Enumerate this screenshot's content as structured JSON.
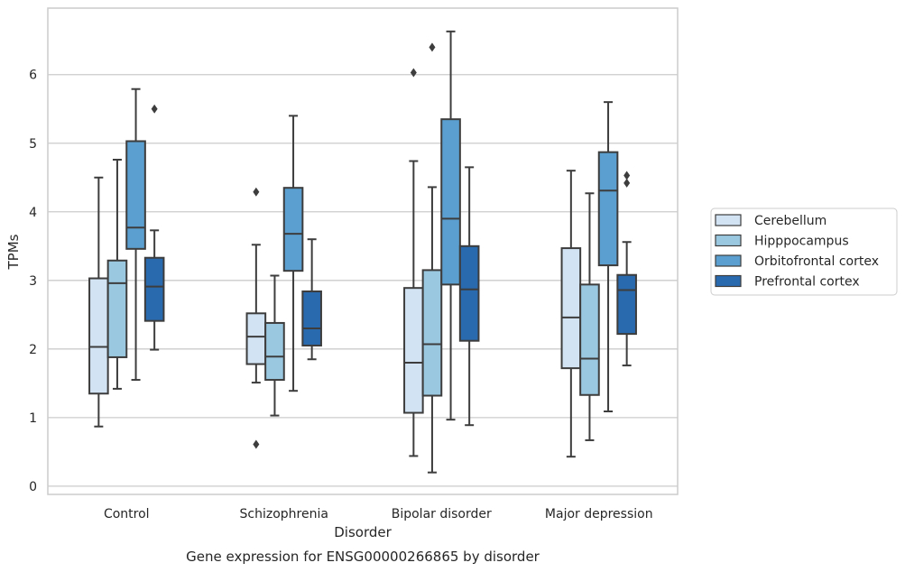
{
  "chart_data": {
    "type": "box",
    "caption": "Gene expression for ENSG00000266865 by disorder",
    "xlabel": "Disorder",
    "ylabel": "TPMs",
    "ylim": [
      -0.12,
      6.97
    ],
    "yticks": [
      0,
      1,
      2,
      3,
      4,
      5,
      6
    ],
    "grid": true,
    "legend_position": "right",
    "categories": [
      "Control",
      "Schizophrenia",
      "Bipolar disorder",
      "Major depression"
    ],
    "series": [
      {
        "name": "Cerebellum",
        "color": "#d2e3f3",
        "boxes": [
          {
            "whisker_low": 0.87,
            "q1": 1.35,
            "median": 2.03,
            "q3": 3.03,
            "whisker_high": 4.5,
            "outliers": []
          },
          {
            "whisker_low": 1.51,
            "q1": 1.78,
            "median": 2.18,
            "q3": 2.52,
            "whisker_high": 3.52,
            "outliers": [
              4.29,
              0.61
            ]
          },
          {
            "whisker_low": 0.44,
            "q1": 1.07,
            "median": 1.8,
            "q3": 2.89,
            "whisker_high": 4.74,
            "outliers": [
              6.03
            ]
          },
          {
            "whisker_low": 0.43,
            "q1": 1.72,
            "median": 2.46,
            "q3": 3.47,
            "whisker_high": 4.6,
            "outliers": []
          }
        ]
      },
      {
        "name": "Hipppocampus",
        "color": "#9ac8e0",
        "boxes": [
          {
            "whisker_low": 1.42,
            "q1": 1.88,
            "median": 2.96,
            "q3": 3.29,
            "whisker_high": 4.76,
            "outliers": []
          },
          {
            "whisker_low": 1.03,
            "q1": 1.55,
            "median": 1.89,
            "q3": 2.38,
            "whisker_high": 3.07,
            "outliers": []
          },
          {
            "whisker_low": 0.2,
            "q1": 1.32,
            "median": 2.07,
            "q3": 3.15,
            "whisker_high": 4.36,
            "outliers": [
              6.4
            ]
          },
          {
            "whisker_low": 0.67,
            "q1": 1.33,
            "median": 1.86,
            "q3": 2.94,
            "whisker_high": 4.27,
            "outliers": []
          }
        ]
      },
      {
        "name": "Orbitofrontal cortex",
        "color": "#5a9fcf",
        "boxes": [
          {
            "whisker_low": 1.55,
            "q1": 3.46,
            "median": 3.77,
            "q3": 5.03,
            "whisker_high": 5.79,
            "outliers": []
          },
          {
            "whisker_low": 1.39,
            "q1": 3.14,
            "median": 3.68,
            "q3": 4.35,
            "whisker_high": 5.4,
            "outliers": []
          },
          {
            "whisker_low": 0.97,
            "q1": 2.94,
            "median": 3.9,
            "q3": 5.35,
            "whisker_high": 6.63,
            "outliers": []
          },
          {
            "whisker_low": 1.09,
            "q1": 3.22,
            "median": 4.31,
            "q3": 4.87,
            "whisker_high": 5.6,
            "outliers": []
          }
        ]
      },
      {
        "name": "Prefrontal cortex",
        "color": "#2969ad",
        "boxes": [
          {
            "whisker_low": 1.99,
            "q1": 2.41,
            "median": 2.91,
            "q3": 3.33,
            "whisker_high": 3.73,
            "outliers": [
              5.5
            ]
          },
          {
            "whisker_low": 1.85,
            "q1": 2.05,
            "median": 2.3,
            "q3": 2.84,
            "whisker_high": 3.6,
            "outliers": []
          },
          {
            "whisker_low": 0.89,
            "q1": 2.12,
            "median": 2.87,
            "q3": 3.5,
            "whisker_high": 4.65,
            "outliers": []
          },
          {
            "whisker_low": 1.76,
            "q1": 2.22,
            "median": 2.86,
            "q3": 3.08,
            "whisker_high": 3.56,
            "outliers": [
              4.53,
              4.42
            ]
          }
        ]
      }
    ]
  }
}
